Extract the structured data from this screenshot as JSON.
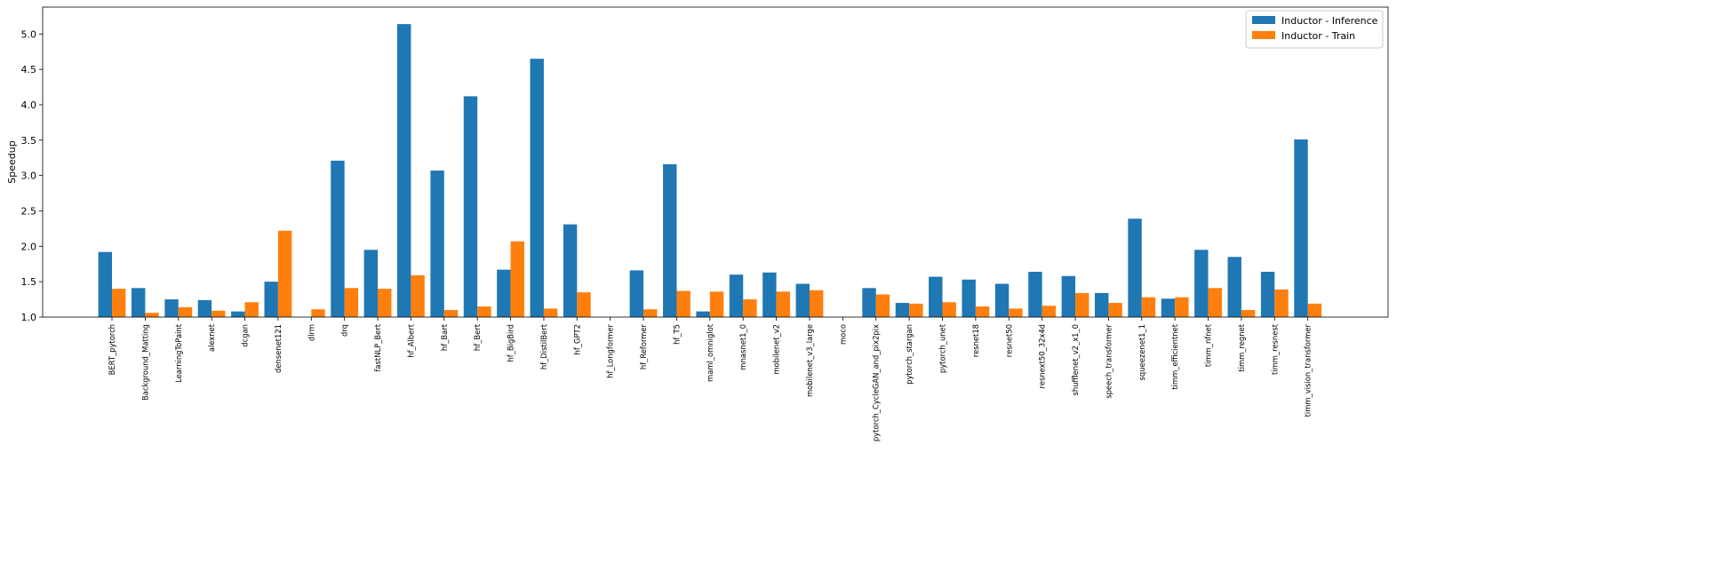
{
  "chart_data": {
    "type": "bar",
    "title": "",
    "xlabel": "",
    "ylabel": "Speedup",
    "ylim": [
      1.0,
      5.38
    ],
    "yticks": [
      1.0,
      1.5,
      2.0,
      2.5,
      3.0,
      3.5,
      4.0,
      4.5,
      5.0
    ],
    "ytick_labels": [
      "1.0",
      "1.5",
      "2.0",
      "2.5",
      "3.0",
      "3.5",
      "4.0",
      "4.5",
      "5.0"
    ],
    "legend_position": "top-right",
    "grid": false,
    "categories": [
      "BERT_pytorch",
      "Background_Matting",
      "LearningToPaint",
      "alexnet",
      "dcgan",
      "densenet121",
      "dlrm",
      "drq",
      "fastNLP_Bert",
      "hf_Albert",
      "hf_Bart",
      "hf_Bert",
      "hf_BigBird",
      "hf_DistilBert",
      "hf_GPT2",
      "hf_Longformer",
      "hf_Reformer",
      "hf_T5",
      "maml_omniglot",
      "mnasnet1_0",
      "mobilenet_v2",
      "mobilenet_v3_large",
      "moco",
      "pytorch_CycleGAN_and_pix2pix",
      "pytorch_stargan",
      "pytorch_unet",
      "resnet18",
      "resnet50",
      "resnext50_32x4d",
      "shufflenet_v2_x1_0",
      "speech_transformer",
      "squeezenet1_1",
      "timm_efficientnet",
      "timm_nfnet",
      "timm_regnet",
      "timm_resnest",
      "timm_vision_transformer"
    ],
    "series": [
      {
        "name": "Inductor - Inference",
        "color": "#1f77b4",
        "values": [
          1.92,
          1.41,
          1.25,
          1.24,
          1.08,
          1.5,
          null,
          3.21,
          1.95,
          5.14,
          3.07,
          4.12,
          1.67,
          4.65,
          2.31,
          null,
          1.66,
          3.16,
          1.08,
          1.6,
          1.63,
          1.47,
          null,
          1.41,
          1.2,
          1.57,
          1.53,
          1.47,
          1.64,
          1.58,
          1.34,
          2.39,
          1.26,
          1.95,
          1.85,
          1.64,
          3.51
        ]
      },
      {
        "name": "Inductor - Train",
        "color": "#ff7f0e",
        "values": [
          1.4,
          1.06,
          1.14,
          1.09,
          1.21,
          2.22,
          1.11,
          1.41,
          1.4,
          1.59,
          1.1,
          1.15,
          2.07,
          1.12,
          1.35,
          null,
          1.11,
          1.37,
          1.36,
          1.25,
          1.36,
          1.38,
          null,
          1.32,
          1.19,
          1.21,
          1.15,
          1.12,
          1.16,
          1.34,
          1.2,
          1.28,
          1.28,
          1.41,
          1.1,
          1.39,
          1.19
        ]
      }
    ]
  }
}
